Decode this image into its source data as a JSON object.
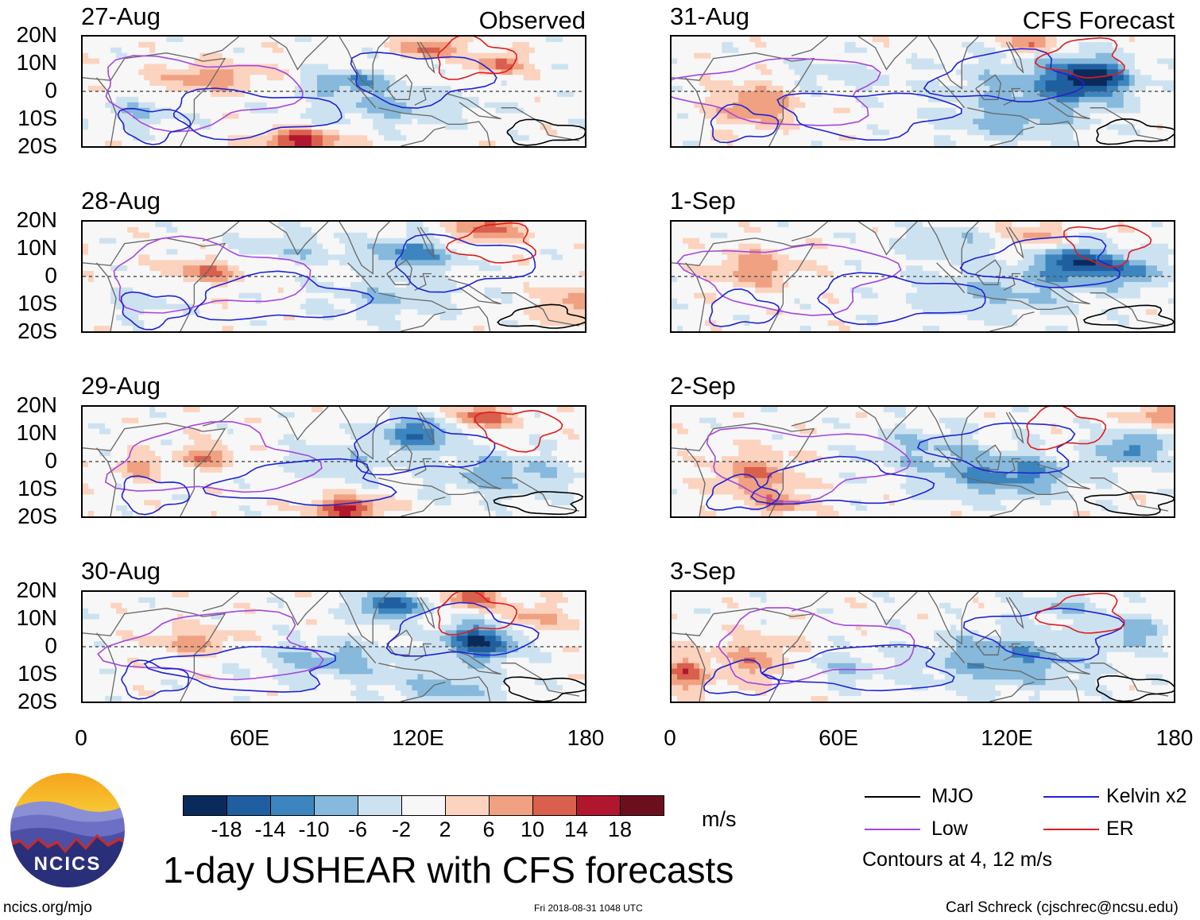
{
  "headers": {
    "observed": "Observed",
    "forecast": "CFS Forecast"
  },
  "y_ticks": [
    "20N",
    "10N",
    "0",
    "10S",
    "20S"
  ],
  "x_ticks": [
    "0",
    "60E",
    "120E",
    "180"
  ],
  "colorbar": {
    "labels": [
      "-18",
      "-14",
      "-10",
      "-6",
      "-2",
      "2",
      "6",
      "10",
      "14",
      "18"
    ],
    "units": "m/s",
    "colors": [
      "#0b2a5c",
      "#1f5fa0",
      "#3d85be",
      "#86b9db",
      "#cde2f0",
      "#f7f7f7",
      "#fbd3bf",
      "#f0a182",
      "#d8604d",
      "#b0172f",
      "#6b0f1e"
    ]
  },
  "legend": {
    "mjo": "MJO",
    "kelvin": "Kelvin x2",
    "low": "Low",
    "er": "ER",
    "note": "Contours at 4, 12 m/s",
    "colors": {
      "mjo": "#000000",
      "kelvin": "#1e22d6",
      "low": "#a546e0",
      "er": "#e01b1b"
    }
  },
  "title": "1-day USHEAR with CFS forecasts",
  "logo_text": "NCICS",
  "footer": {
    "url": "ncics.org/mjo",
    "timestamp": "Fri 2018-08-31 1048 UTC",
    "credit": "Carl Schreck (cjschrec@ncsu.edu)"
  },
  "chart_data": {
    "type": "heatmap",
    "title": "1-day USHEAR with CFS forecasts",
    "variable": "USHEAR",
    "units": "m/s",
    "x_range": [
      0,
      180
    ],
    "y_range": [
      -20,
      20
    ],
    "contour_levels": [
      4,
      12
    ],
    "observed_dates": [
      "27-Aug",
      "28-Aug",
      "29-Aug",
      "30-Aug"
    ],
    "forecast_dates": [
      "31-Aug",
      "1-Sep",
      "2-Sep",
      "3-Sep"
    ],
    "panels": [
      {
        "date": "27-Aug",
        "kind": "Observed",
        "blobs": [
          [
            45,
            5,
            18,
            5,
            9
          ],
          [
            95,
            4,
            14,
            4,
            -10
          ],
          [
            125,
            16,
            10,
            4,
            12
          ],
          [
            78,
            -18,
            14,
            4,
            16
          ],
          [
            110,
            -5,
            30,
            7,
            -7
          ],
          [
            150,
            10,
            8,
            4,
            12
          ],
          [
            20,
            -8,
            14,
            5,
            -6
          ]
        ]
      },
      {
        "date": "28-Aug",
        "kind": "Observed",
        "blobs": [
          [
            45,
            2,
            14,
            4,
            10
          ],
          [
            118,
            8,
            16,
            6,
            -12
          ],
          [
            145,
            17,
            12,
            5,
            12
          ],
          [
            110,
            -8,
            25,
            7,
            -6
          ],
          [
            175,
            -10,
            10,
            6,
            8
          ],
          [
            75,
            10,
            20,
            6,
            -5
          ],
          [
            20,
            -10,
            12,
            5,
            -4
          ]
        ]
      },
      {
        "date": "29-Aug",
        "kind": "Observed",
        "blobs": [
          [
            45,
            2,
            10,
            4,
            10
          ],
          [
            20,
            -2,
            8,
            4,
            8
          ],
          [
            120,
            10,
            14,
            6,
            -14
          ],
          [
            143,
            16,
            10,
            4,
            14
          ],
          [
            95,
            -17,
            12,
            4,
            16
          ],
          [
            150,
            -5,
            25,
            8,
            -8
          ],
          [
            90,
            0,
            20,
            6,
            -5
          ]
        ]
      },
      {
        "date": "30-Aug",
        "kind": "Observed",
        "blobs": [
          [
            40,
            2,
            14,
            5,
            8
          ],
          [
            110,
            15,
            12,
            5,
            -16
          ],
          [
            143,
            2,
            14,
            7,
            -18
          ],
          [
            140,
            18,
            8,
            4,
            14
          ],
          [
            90,
            -5,
            25,
            7,
            -8
          ],
          [
            130,
            -15,
            20,
            6,
            -8
          ],
          [
            160,
            10,
            12,
            6,
            8
          ]
        ]
      },
      {
        "date": "31-Aug",
        "kind": "CFS Forecast",
        "blobs": [
          [
            30,
            -5,
            14,
            8,
            10
          ],
          [
            150,
            5,
            14,
            7,
            -18
          ],
          [
            130,
            0,
            30,
            12,
            -8
          ],
          [
            130,
            18,
            8,
            4,
            12
          ],
          [
            120,
            -12,
            20,
            6,
            -6
          ],
          [
            60,
            5,
            20,
            6,
            -4
          ]
        ]
      },
      {
        "date": "1-Sep",
        "kind": "CFS Forecast",
        "blobs": [
          [
            30,
            3,
            14,
            7,
            9
          ],
          [
            145,
            5,
            12,
            6,
            -18
          ],
          [
            165,
            2,
            10,
            6,
            -12
          ],
          [
            120,
            -5,
            30,
            10,
            -7
          ],
          [
            130,
            15,
            10,
            5,
            8
          ],
          [
            100,
            12,
            20,
            6,
            -5
          ]
        ]
      },
      {
        "date": "2-Sep",
        "kind": "CFS Forecast",
        "blobs": [
          [
            30,
            -5,
            14,
            8,
            10
          ],
          [
            120,
            -5,
            25,
            8,
            -12
          ],
          [
            165,
            5,
            12,
            6,
            -12
          ],
          [
            175,
            17,
            10,
            4,
            10
          ],
          [
            90,
            5,
            20,
            8,
            -6
          ],
          [
            40,
            -15,
            10,
            4,
            8
          ]
        ]
      },
      {
        "date": "3-Sep",
        "kind": "CFS Forecast",
        "blobs": [
          [
            30,
            -5,
            14,
            8,
            8
          ],
          [
            120,
            -5,
            30,
            10,
            -10
          ],
          [
            165,
            5,
            12,
            6,
            -8
          ],
          [
            5,
            -10,
            8,
            6,
            12
          ],
          [
            140,
            15,
            15,
            5,
            -6
          ],
          [
            60,
            -8,
            15,
            6,
            -5
          ]
        ]
      }
    ]
  }
}
